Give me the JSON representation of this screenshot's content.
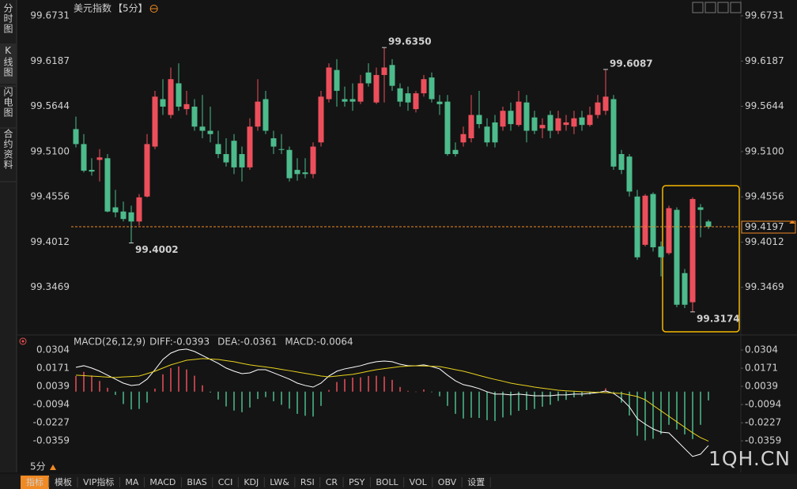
{
  "sidebar": {
    "tabs": [
      "分时图",
      "K线图",
      "闪电图",
      "合约资料"
    ],
    "active": 1
  },
  "toolbar": {
    "period": "5分",
    "buttons": [
      "指标",
      "模板",
      "VIP指标",
      "MA",
      "MACD",
      "BIAS",
      "CCI",
      "KDJ",
      "LW&",
      "RSI",
      "CR",
      "PSY",
      "BOLL",
      "VOL",
      "OBV",
      "设置"
    ],
    "active": 0,
    "vip": 2
  },
  "watermark": "1QH.CN",
  "chart_data": [
    {
      "type": "candlestick",
      "title": "美元指数",
      "period_label": "【5分】",
      "up_color": "#ec4f5b",
      "down_color": "#4dbb8c",
      "last_color": "#f08a24",
      "ylim": [
        99.2935,
        99.6845
      ],
      "yticks": [
        99.6731,
        99.6187,
        99.5644,
        {
          "value": 99.51,
          "label": "99.5100"
        },
        99.4556,
        99.4012,
        99.3469
      ],
      "annotations": [
        {
          "value": 99.635,
          "label": "99.6350",
          "at": "high"
        },
        {
          "value": 99.6087,
          "label": "99.6087",
          "at": "high"
        },
        {
          "value": 99.4002,
          "label": "99.4002",
          "at": "low"
        },
        {
          "value": 99.3174,
          "label": "99.3174",
          "at": "low"
        }
      ],
      "open": [
        99.537,
        99.519,
        99.488,
        99.5,
        99.502,
        99.443,
        99.438,
        99.437,
        99.426,
        99.456,
        99.516,
        99.573,
        99.554,
        99.592,
        99.561,
        99.564,
        99.54,
        99.535,
        99.519,
        99.507,
        99.523,
        99.507,
        99.491,
        99.54,
        99.573,
        99.526,
        99.513,
        99.512,
        99.488,
        99.485,
        99.483,
        99.521,
        99.573,
        99.608,
        99.573,
        99.573,
        99.57,
        99.605,
        99.569,
        99.602,
        99.614,
        99.586,
        99.58,
        99.561,
        99.58,
        99.599,
        99.57,
        99.57,
        99.512,
        99.521,
        99.526,
        99.554,
        99.54,
        99.545,
        99.54,
        99.559,
        99.542,
        99.569,
        99.551,
        99.538,
        99.554,
        99.535,
        99.542,
        99.54,
        99.551,
        99.542,
        99.554,
        99.559,
        99.573,
        99.507,
        99.504,
        99.456,
        99.398,
        99.459,
        99.396,
        99.388,
        99.44,
        99.364,
        99.329,
        99.443,
        99.426
      ],
      "high": [
        99.552,
        99.531,
        99.502,
        99.513,
        99.507,
        99.464,
        99.45,
        99.445,
        99.459,
        99.531,
        99.583,
        99.597,
        99.611,
        99.616,
        99.583,
        99.573,
        99.578,
        99.564,
        99.535,
        99.526,
        99.531,
        99.516,
        99.55,
        99.597,
        99.583,
        99.535,
        99.531,
        99.516,
        99.502,
        99.502,
        99.521,
        99.583,
        99.616,
        99.621,
        99.588,
        99.592,
        99.602,
        99.616,
        99.611,
        99.635,
        99.621,
        99.592,
        99.588,
        99.583,
        99.602,
        99.605,
        99.578,
        99.578,
        99.521,
        99.54,
        99.578,
        99.583,
        99.55,
        99.554,
        99.564,
        99.569,
        99.583,
        99.578,
        99.559,
        99.55,
        99.559,
        99.559,
        99.554,
        99.559,
        99.559,
        99.564,
        99.578,
        99.6087,
        99.578,
        99.512,
        99.507,
        99.464,
        99.459,
        99.461,
        99.402,
        99.445,
        99.443,
        99.369,
        99.455,
        99.447,
        99.428
      ],
      "low": [
        99.515,
        99.485,
        99.481,
        99.474,
        99.437,
        99.431,
        99.426,
        99.4002,
        99.421,
        99.455,
        99.513,
        99.554,
        99.55,
        99.559,
        99.554,
        99.535,
        99.526,
        99.521,
        99.502,
        99.492,
        99.483,
        99.474,
        99.488,
        99.535,
        99.531,
        99.507,
        99.507,
        99.474,
        99.475,
        99.478,
        99.478,
        99.516,
        99.569,
        99.564,
        99.564,
        99.559,
        99.567,
        99.588,
        99.567,
        99.569,
        99.583,
        99.564,
        99.559,
        99.557,
        99.576,
        99.569,
        99.554,
        99.505,
        99.504,
        99.516,
        99.521,
        99.538,
        99.516,
        99.515,
        99.535,
        99.535,
        99.54,
        99.521,
        99.531,
        99.526,
        99.526,
        99.531,
        99.535,
        99.531,
        99.535,
        99.54,
        99.55,
        99.554,
        99.488,
        99.483,
        99.456,
        99.38,
        99.396,
        99.39,
        99.36,
        99.386,
        99.323,
        99.322,
        99.3174,
        99.407,
        99.417
      ],
      "close": [
        99.519,
        99.487,
        99.486,
        99.503,
        99.438,
        99.437,
        99.429,
        99.426,
        99.455,
        99.519,
        99.576,
        99.564,
        99.597,
        99.564,
        99.567,
        99.54,
        99.535,
        99.531,
        99.507,
        99.497,
        99.491,
        99.491,
        99.54,
        99.57,
        99.535,
        99.516,
        99.512,
        99.478,
        99.483,
        99.483,
        99.516,
        99.576,
        99.611,
        99.583,
        99.57,
        99.57,
        99.592,
        99.592,
        99.602,
        99.611,
        99.589,
        99.57,
        99.569,
        99.58,
        99.597,
        99.573,
        99.567,
        99.507,
        99.507,
        99.531,
        99.554,
        99.543,
        99.521,
        99.521,
        99.559,
        99.543,
        99.57,
        99.535,
        99.535,
        99.542,
        99.535,
        99.55,
        99.545,
        99.55,
        99.542,
        99.554,
        99.569,
        99.576,
        99.492,
        99.488,
        99.462,
        99.383,
        99.457,
        99.395,
        99.383,
        99.442,
        99.326,
        99.326,
        99.453,
        99.44,
        99.4197
      ]
    },
    {
      "type": "macd",
      "title": "MACD(26,12,9)",
      "ylim": [
        -0.0543,
        0.035
      ],
      "yticks": [
        0.0304,
        0.0171,
        0.0039,
        -0.0094,
        -0.0227,
        -0.0359
      ],
      "series": [
        {
          "name": "DIFF:-0.0393",
          "color": "#ffffff",
          "kind": "line",
          "values": [
            0.0177,
            0.0189,
            0.0172,
            0.0149,
            0.012,
            0.0091,
            0.0062,
            0.0045,
            0.0051,
            0.0091,
            0.016,
            0.0235,
            0.0281,
            0.0304,
            0.031,
            0.0293,
            0.0264,
            0.0235,
            0.0206,
            0.0172,
            0.0149,
            0.0131,
            0.0137,
            0.016,
            0.016,
            0.0137,
            0.0114,
            0.0091,
            0.0062,
            0.0045,
            0.0033,
            0.0062,
            0.0114,
            0.0149,
            0.0166,
            0.0177,
            0.0189,
            0.0206,
            0.0218,
            0.0223,
            0.0218,
            0.02,
            0.0189,
            0.0189,
            0.0195,
            0.0183,
            0.0166,
            0.012,
            0.0079,
            0.0051,
            0.0039,
            0.0022,
            -0.0001,
            -0.0018,
            -0.0018,
            -0.0024,
            -0.0018,
            -0.0024,
            -0.003,
            -0.003,
            -0.003,
            -0.0024,
            -0.0024,
            -0.0018,
            -0.0018,
            -0.0013,
            -0.0007,
            0.0005,
            -0.0013,
            -0.0053,
            -0.0111,
            -0.0197,
            -0.0237,
            -0.0272,
            -0.0295,
            -0.0301,
            -0.0358,
            -0.0416,
            -0.0473,
            -0.0456,
            -0.0393
          ]
        },
        {
          "name": "DEA:-0.0361",
          "color": "#e8d21d",
          "kind": "line",
          "values": [
            0.012,
            0.0117,
            0.0113,
            0.011,
            0.0106,
            0.0103,
            0.0107,
            0.011,
            0.0114,
            0.0131,
            0.0149,
            0.0172,
            0.0195,
            0.0212,
            0.0229,
            0.0235,
            0.0241,
            0.0238,
            0.0235,
            0.0226,
            0.0218,
            0.0206,
            0.0195,
            0.0187,
            0.018,
            0.0172,
            0.0162,
            0.0153,
            0.0143,
            0.0133,
            0.0124,
            0.0114,
            0.0108,
            0.0114,
            0.012,
            0.0126,
            0.0137,
            0.0149,
            0.016,
            0.0168,
            0.0175,
            0.0183,
            0.0186,
            0.0189,
            0.0187,
            0.0185,
            0.0183,
            0.0172,
            0.016,
            0.0149,
            0.0134,
            0.0118,
            0.0103,
            0.0089,
            0.0076,
            0.0062,
            0.0052,
            0.0043,
            0.0033,
            0.0025,
            0.0018,
            0.001,
            0.0006,
            0.0003,
            -0.0001,
            -0.0003,
            -0.0005,
            -0.0007,
            -0.001,
            -0.0013,
            -0.0024,
            -0.0036,
            -0.0059,
            -0.01,
            -0.014,
            -0.018,
            -0.022,
            -0.026,
            -0.03,
            -0.0335,
            -0.0361
          ]
        },
        {
          "name": "MACD:-0.0064",
          "color": "#d63ad6",
          "kind": "histogram",
          "up_color": "#ec4f5b",
          "down_color": "#4dbb8c",
          "values": [
            0.0114,
            0.0144,
            0.0118,
            0.0078,
            0.0028,
            -0.0024,
            -0.009,
            -0.013,
            -0.0126,
            -0.008,
            0.0022,
            0.0126,
            0.0172,
            0.0184,
            0.0162,
            0.0116,
            0.0046,
            -0.0006,
            -0.0058,
            -0.0108,
            -0.0138,
            -0.015,
            -0.0116,
            -0.0054,
            -0.004,
            -0.007,
            -0.0096,
            -0.0124,
            -0.0162,
            -0.0176,
            -0.0182,
            -0.0104,
            0.0012,
            0.007,
            0.0092,
            0.0102,
            0.0104,
            0.0114,
            0.0116,
            0.011,
            0.0086,
            0.0034,
            0.0006,
            0,
            0.0016,
            -0.0004,
            -0.0034,
            -0.0104,
            -0.0162,
            -0.0196,
            -0.019,
            -0.0192,
            -0.0208,
            -0.0214,
            -0.0188,
            -0.0172,
            -0.014,
            -0.0134,
            -0.0126,
            -0.011,
            -0.0096,
            -0.0068,
            -0.006,
            -0.0042,
            -0.0034,
            -0.002,
            -0.0004,
            0.0024,
            -0.0006,
            -0.008,
            -0.0174,
            -0.0322,
            -0.0356,
            -0.0344,
            -0.031,
            -0.0242,
            -0.0276,
            -0.0312,
            -0.0346,
            -0.0242,
            -0.0064
          ]
        }
      ]
    }
  ]
}
